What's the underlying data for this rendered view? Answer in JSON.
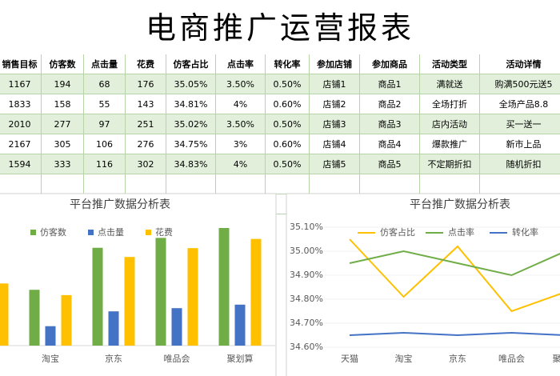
{
  "title": "电商推广运营报表",
  "table": {
    "columns": [
      "销售目标",
      "仿客数",
      "点击量",
      "花费",
      "仿客占比",
      "点击率",
      "转化率",
      "参加店铺",
      "参加商品",
      "活动类型",
      "活动详情"
    ],
    "rows": [
      [
        "1167",
        "194",
        "68",
        "176",
        "35.05%",
        "3.50%",
        "0.50%",
        "店铺1",
        "商品1",
        "满就送",
        "购满500元送5"
      ],
      [
        "1833",
        "158",
        "55",
        "143",
        "34.81%",
        "4%",
        "0.60%",
        "店铺2",
        "商品2",
        "全场打折",
        "全场产品8.8"
      ],
      [
        "2010",
        "277",
        "97",
        "251",
        "35.02%",
        "3.50%",
        "0.50%",
        "店铺3",
        "商品3",
        "店内活动",
        "买一送一"
      ],
      [
        "2167",
        "305",
        "106",
        "276",
        "34.75%",
        "3%",
        "0.60%",
        "店铺4",
        "商品4",
        "爆款推广",
        "新市上品"
      ],
      [
        "1594",
        "333",
        "116",
        "302",
        "34.83%",
        "4%",
        "0.50%",
        "店铺5",
        "商品5",
        "不定期折扣",
        "随机折扣"
      ]
    ]
  },
  "chart_data": [
    {
      "type": "bar",
      "title": "平台推广数据分析表",
      "categories": [
        null,
        "淘宝",
        "京东",
        "唯品会",
        "聚划算"
      ],
      "series": [
        {
          "name": "仿客数",
          "color": "#70ad47",
          "values": [
            194,
            158,
            277,
            305,
            333
          ]
        },
        {
          "name": "点击量",
          "color": "#4472c4",
          "values": [
            68,
            55,
            97,
            106,
            116
          ]
        },
        {
          "name": "花费",
          "color": "#ffc000",
          "values": [
            176,
            143,
            251,
            276,
            302
          ]
        }
      ]
    },
    {
      "type": "line",
      "title": "平台推广数据分析表",
      "categories": [
        "天猫",
        "淘宝",
        "京东",
        "唯品会",
        "聚划算"
      ],
      "series": [
        {
          "name": "仿客占比",
          "color": "#ffc000",
          "values": [
            35.05,
            34.81,
            35.02,
            34.75,
            34.83
          ]
        },
        {
          "name": "点击率",
          "color": "#70ad47",
          "axis": "y2",
          "values": [
            3.5,
            4,
            3.5,
            3,
            4
          ]
        },
        {
          "name": "转化率",
          "color": "#4472c4",
          "axis": "y2",
          "values": [
            0.5,
            0.6,
            0.5,
            0.6,
            0.5
          ]
        }
      ],
      "ylim": [
        34.6,
        35.1
      ],
      "yticks": [
        {
          "value": 34.6,
          "label": "34.60%"
        },
        {
          "value": 34.7,
          "label": "34.70%"
        },
        {
          "value": 34.8,
          "label": "34.80%"
        },
        {
          "value": 34.9,
          "label": "34.90%"
        },
        {
          "value": 35.0,
          "label": "35.00%"
        },
        {
          "value": 35.1,
          "label": "35.10%"
        }
      ],
      "y2lim": [
        0,
        5
      ],
      "grid": true
    }
  ]
}
